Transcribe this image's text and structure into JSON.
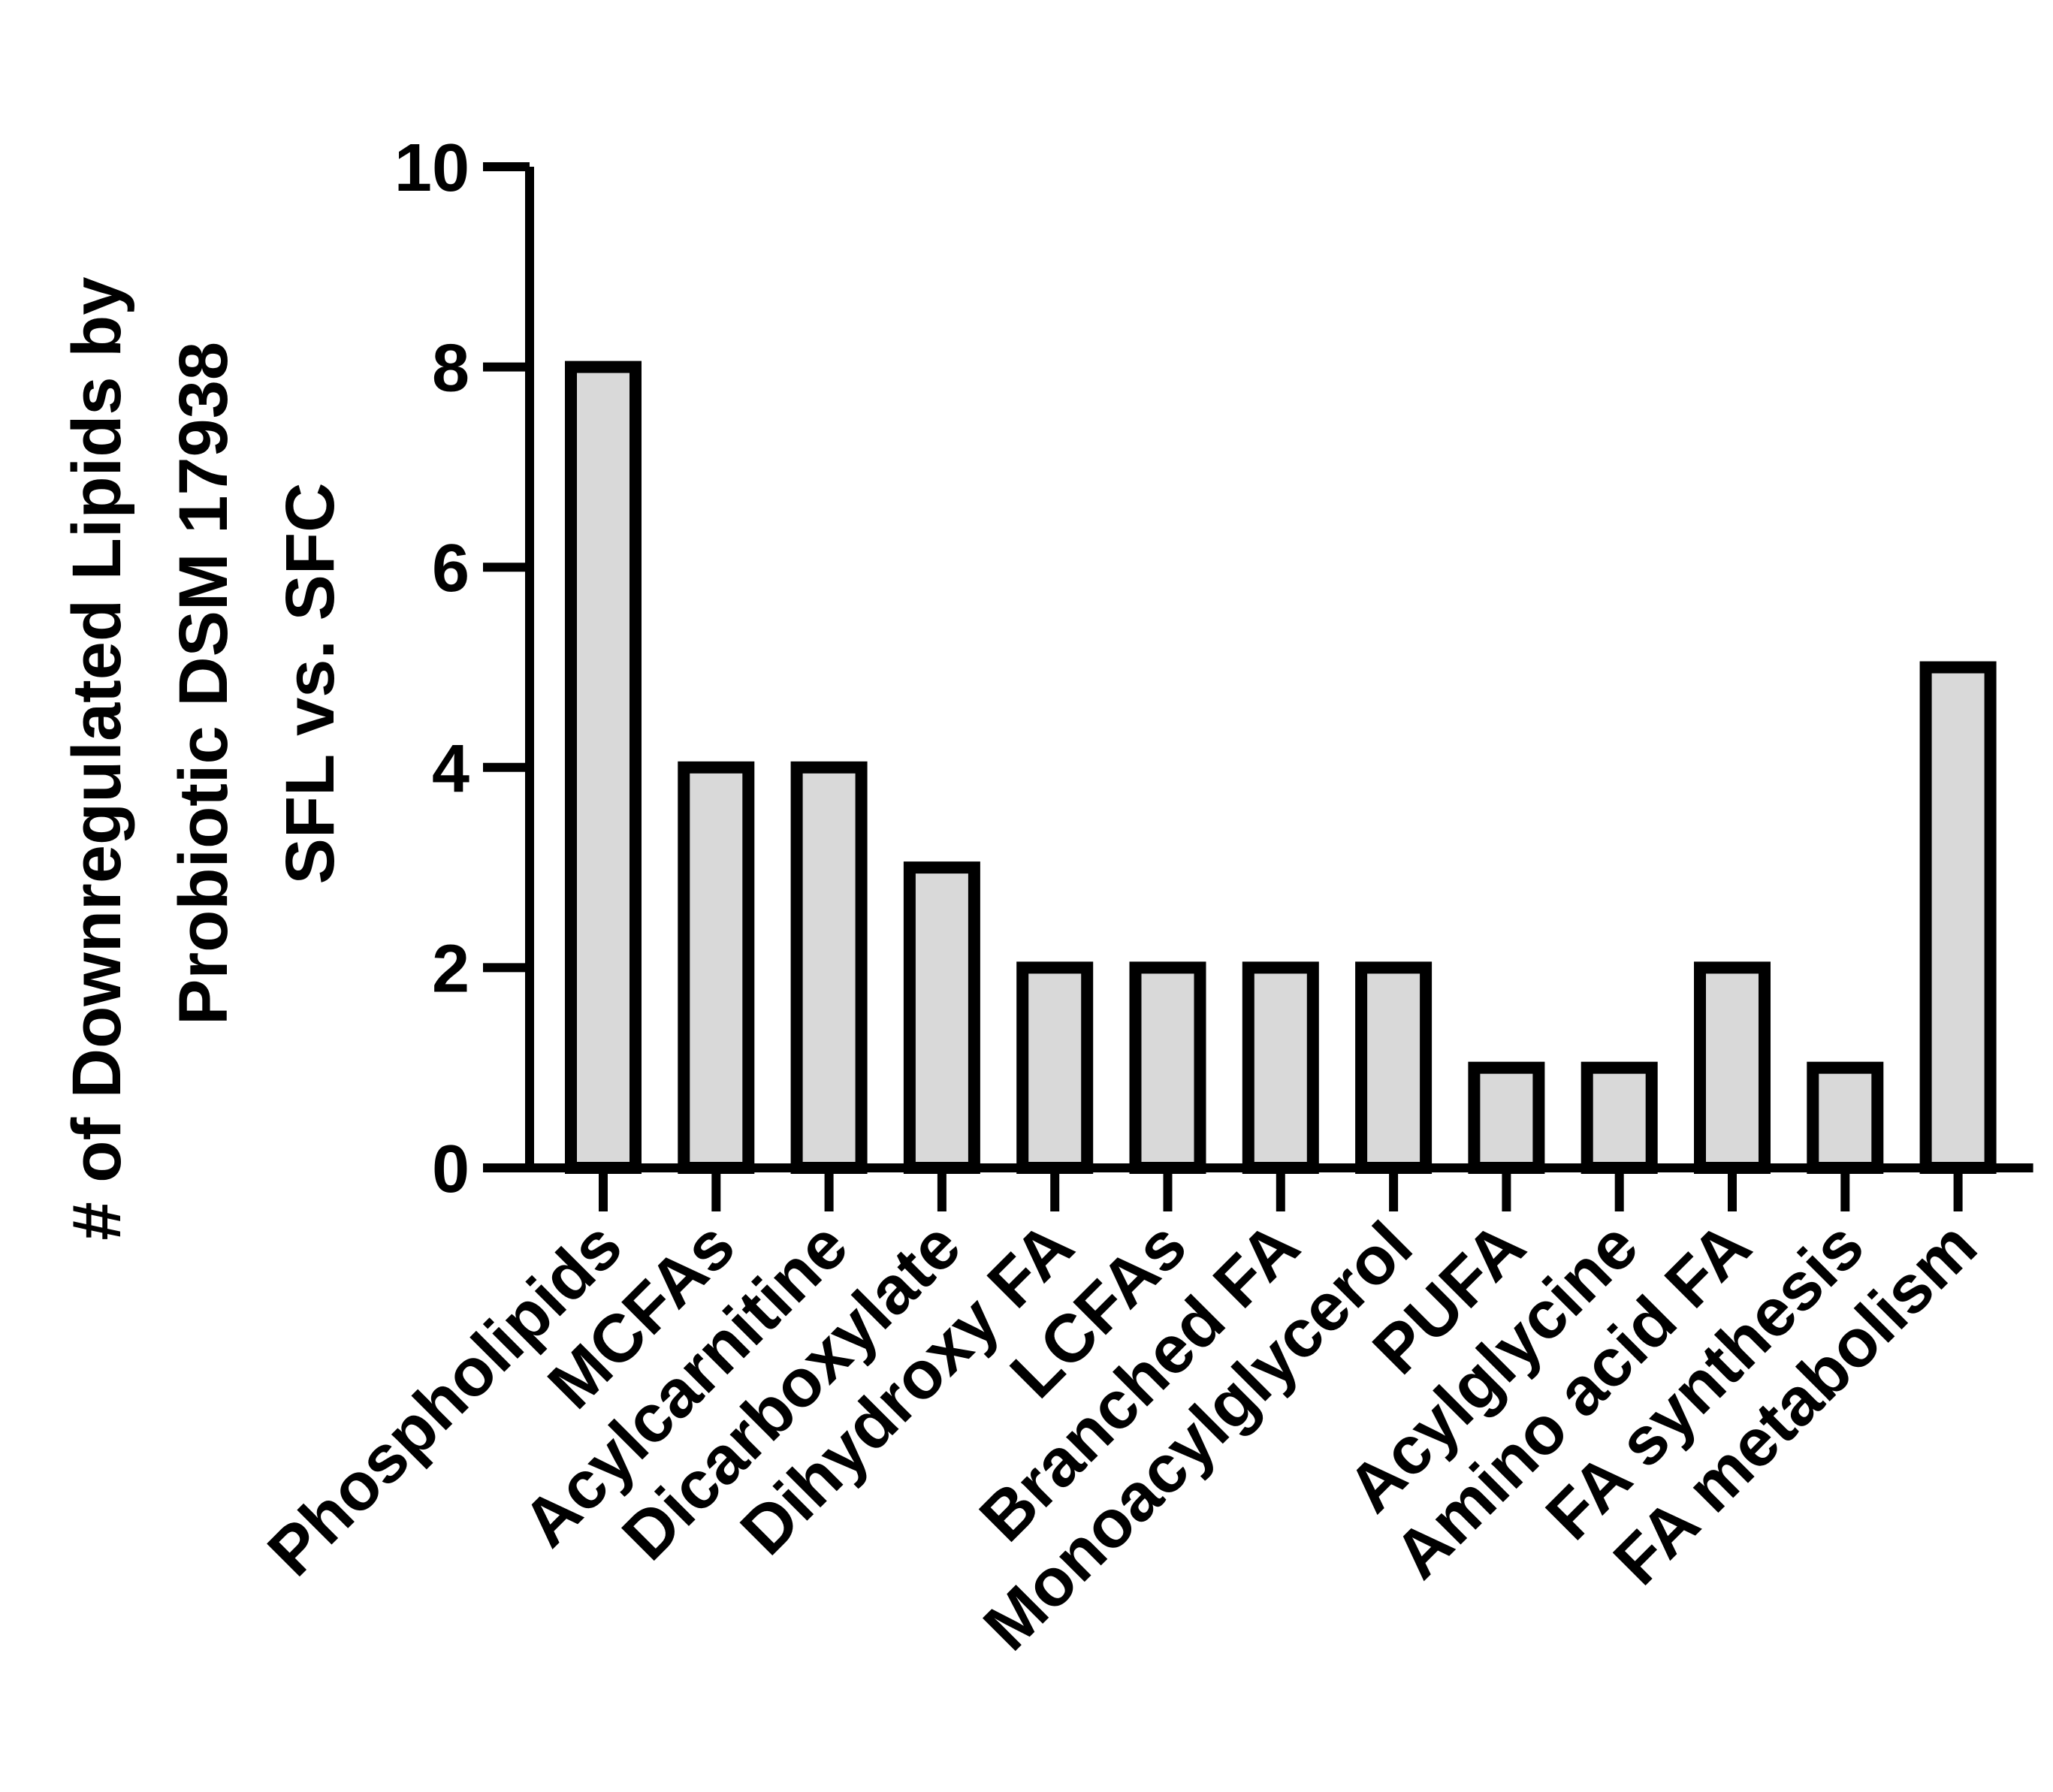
{
  "chart_data": {
    "type": "bar",
    "ylabel_lines": [
      "# of Downregulated Lipids by",
      "Probiotic DSM 17938",
      "SFL vs. SFC"
    ],
    "xlabel": "",
    "categories": [
      "Phospholipids",
      "MCFAs",
      "Acylcarnitine",
      "Dicarboxylate",
      "Dihydroxy FA",
      "LCFAs",
      "Branched FA",
      "Monoacylglycerol",
      "PUFA",
      "Acylglycine",
      "Amino acid FA",
      "FA synthesis",
      "FA metabolism"
    ],
    "values": [
      8,
      4,
      4,
      3,
      2,
      2,
      2,
      2,
      1,
      1,
      2,
      1,
      5
    ],
    "ylim": [
      0,
      10
    ],
    "yticks": [
      0,
      2,
      4,
      6,
      8,
      10
    ],
    "grid": false,
    "legend": "none",
    "colors": {
      "bar_fill": "#d9d9d9",
      "bar_stroke": "#000000",
      "axis": "#000000"
    }
  }
}
